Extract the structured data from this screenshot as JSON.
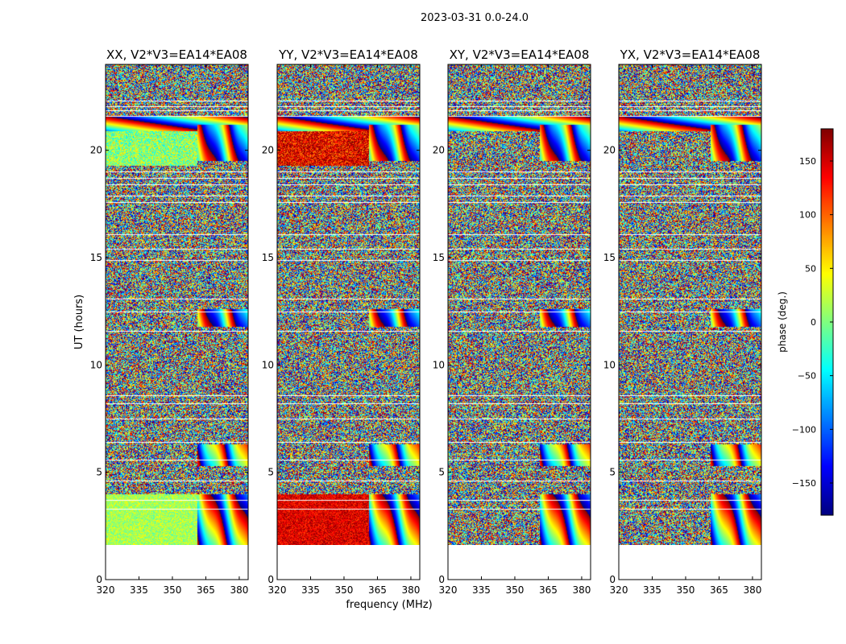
{
  "suptitle": "2023-03-31 0.0-24.0",
  "chart_data": {
    "type": "heatmap",
    "description_values": "phase of visibility vs frequency and UT, four polarization panels sharing axes",
    "xlabel": "frequency (MHz)",
    "ylabel": "UT (hours)",
    "xlim": [
      320,
      384
    ],
    "ylim": [
      0,
      24
    ],
    "xticks": [
      {
        "value": 320,
        "label": "320"
      },
      {
        "value": 335,
        "label": "335"
      },
      {
        "value": 350,
        "label": "350"
      },
      {
        "value": 365,
        "label": "365"
      },
      {
        "value": 380,
        "label": "380"
      }
    ],
    "yticks": [
      {
        "value": 0,
        "label": "0"
      },
      {
        "value": 5,
        "label": "5"
      },
      {
        "value": 10,
        "label": "10"
      },
      {
        "value": 15,
        "label": "15"
      },
      {
        "value": 20,
        "label": "20"
      }
    ],
    "data_ut_range": [
      1.6,
      24.0
    ],
    "band_edge_mhz": 361,
    "flagged_ut": [
      22.3,
      22.05,
      21.85,
      21.6,
      19.0,
      18.7,
      18.4,
      17.9,
      17.6,
      16.1,
      15.4,
      14.9,
      13.1,
      12.5,
      11.6,
      8.6,
      8.2,
      7.5,
      6.4,
      5.6,
      4.6,
      3.7,
      3.3
    ],
    "panels": [
      {
        "title": "XX, V2*V3=EA14*EA08",
        "low_band_phase": 15,
        "low_band_upto_ut": 4.0,
        "mid_band_phase": 5,
        "mid_band_ut": [
          19.3,
          20.9
        ]
      },
      {
        "title": "YY, V2*V3=EA14*EA08",
        "low_band_phase": 145,
        "low_band_upto_ut": 4.0,
        "mid_band_phase": 140,
        "mid_band_ut": [
          19.3,
          20.9
        ]
      },
      {
        "title": "XY, V2*V3=EA14*EA08",
        "low_band_phase": null,
        "low_band_upto_ut": 0,
        "mid_band_phase": null,
        "mid_band_ut": null
      },
      {
        "title": "YX, V2*V3=EA14*EA08",
        "low_band_phase": null,
        "low_band_upto_ut": 0,
        "mid_band_phase": null,
        "mid_band_ut": null
      }
    ],
    "colorbar": {
      "label": "phase (deg.)",
      "range": [
        -180,
        180
      ],
      "colormap": "jet",
      "ticks": [
        {
          "value": 150,
          "label": "150"
        },
        {
          "value": 100,
          "label": "100"
        },
        {
          "value": 50,
          "label": "50"
        },
        {
          "value": 0,
          "label": "0"
        },
        {
          "value": -50,
          "label": "−50"
        },
        {
          "value": -100,
          "label": "−100"
        },
        {
          "value": -150,
          "label": "−150"
        }
      ]
    }
  }
}
